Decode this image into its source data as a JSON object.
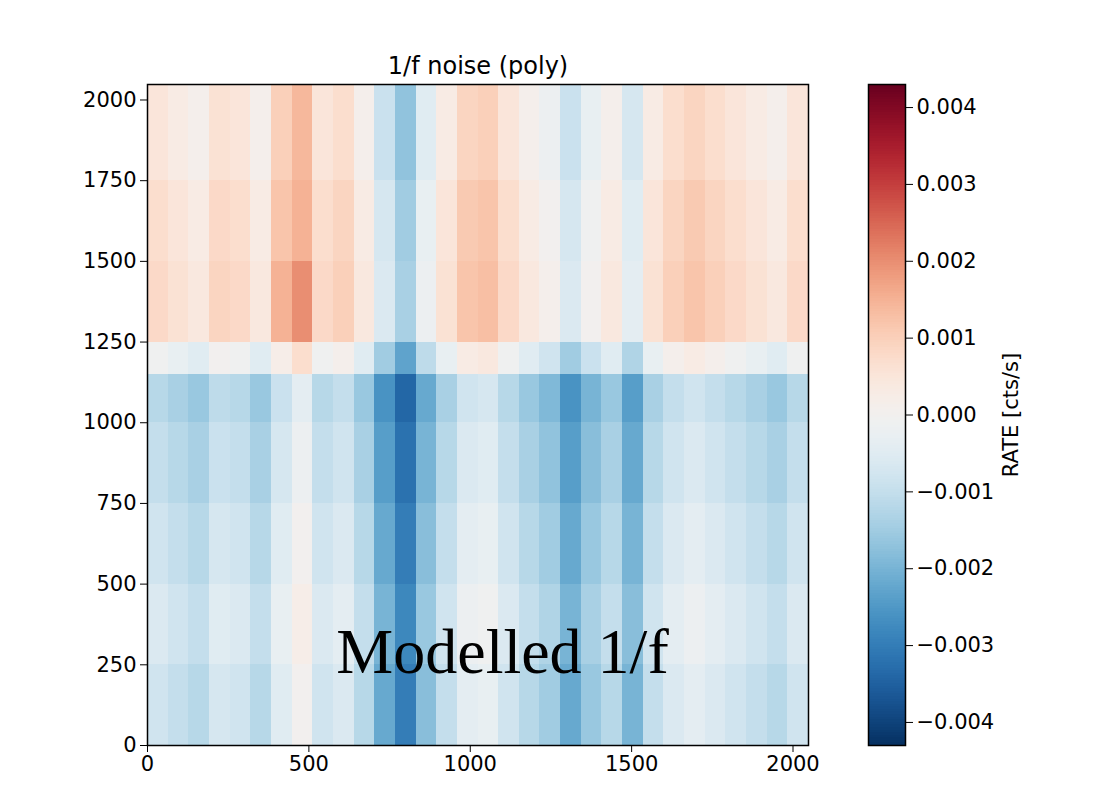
{
  "chart_data": {
    "type": "heatmap",
    "title": "1/f noise (poly)",
    "color": "RdBu_r",
    "xlim": [
      0,
      2048
    ],
    "ylim": [
      0,
      2048
    ],
    "xticks": [
      0,
      500,
      1000,
      1500,
      2000
    ],
    "yticks": [
      0,
      250,
      500,
      750,
      1000,
      1250,
      1500,
      1750,
      2000
    ],
    "x_edges": [
      0,
      64,
      128,
      192,
      256,
      320,
      384,
      448,
      512,
      576,
      640,
      704,
      768,
      832,
      896,
      960,
      1024,
      1088,
      1152,
      1216,
      1280,
      1344,
      1408,
      1472,
      1536,
      1600,
      1664,
      1728,
      1792,
      1856,
      1920,
      1984,
      2048
    ],
    "y_edges": [
      0,
      250,
      500,
      750,
      1000,
      1150,
      1250,
      1500,
      1750,
      2048
    ],
    "cells": [
      [
        -0.0008,
        -0.001,
        -0.0012,
        -0.0007,
        -0.0008,
        -0.0012,
        -0.0005,
        0.0,
        -0.0008,
        -0.0006,
        -0.0012,
        -0.0022,
        -0.003,
        -0.0018,
        -0.001,
        -0.0004,
        -0.0003,
        -0.0008,
        -0.0012,
        -0.0015,
        -0.0022,
        -0.0016,
        -0.0012,
        -0.002,
        -0.001,
        -0.0006,
        -0.0004,
        -0.0006,
        -0.0008,
        -0.001,
        -0.0012,
        -0.0008
      ],
      [
        -0.0006,
        -0.0008,
        -0.001,
        -0.0005,
        -0.0006,
        -0.001,
        -0.0003,
        0.0002,
        -0.0006,
        -0.0004,
        -0.001,
        -0.002,
        -0.0028,
        -0.0016,
        -0.0008,
        -0.0002,
        -0.0001,
        -0.0006,
        -0.001,
        -0.0013,
        -0.002,
        -0.0014,
        -0.001,
        -0.0018,
        -0.0008,
        -0.0004,
        -0.0002,
        -0.0004,
        -0.0006,
        -0.0008,
        -0.001,
        -0.0006
      ],
      [
        -0.0008,
        -0.001,
        -0.0012,
        -0.0007,
        -0.0008,
        -0.0012,
        -0.0005,
        0.0,
        -0.0008,
        -0.0006,
        -0.0012,
        -0.0022,
        -0.003,
        -0.0018,
        -0.001,
        -0.0004,
        -0.0003,
        -0.0008,
        -0.0012,
        -0.0015,
        -0.0022,
        -0.0016,
        -0.0012,
        -0.002,
        -0.001,
        -0.0006,
        -0.0004,
        -0.0006,
        -0.0008,
        -0.001,
        -0.0012,
        -0.0008
      ],
      [
        -0.001,
        -0.0012,
        -0.0014,
        -0.0009,
        -0.001,
        -0.0014,
        -0.0007,
        -0.0002,
        -0.001,
        -0.0008,
        -0.0014,
        -0.0024,
        -0.0032,
        -0.002,
        -0.0012,
        -0.0006,
        -0.0005,
        -0.001,
        -0.0014,
        -0.0017,
        -0.0024,
        -0.0018,
        -0.0014,
        -0.0022,
        -0.0012,
        -0.0008,
        -0.0006,
        -0.0008,
        -0.001,
        -0.0012,
        -0.0014,
        -0.001
      ],
      [
        -0.0012,
        -0.0014,
        -0.0016,
        -0.0011,
        -0.0012,
        -0.0016,
        -0.0009,
        -0.0004,
        -0.0012,
        -0.001,
        -0.0016,
        -0.0026,
        -0.0034,
        -0.0022,
        -0.0014,
        -0.0008,
        -0.0007,
        -0.0012,
        -0.0016,
        -0.0019,
        -0.0026,
        -0.002,
        -0.0016,
        -0.0024,
        -0.0014,
        -0.001,
        -0.0008,
        -0.001,
        -0.0012,
        -0.0014,
        -0.0016,
        -0.0012
      ],
      [
        -0.0001,
        -0.0003,
        -0.0005,
        0.0,
        -0.0001,
        -0.0005,
        0.0002,
        0.0007,
        -0.0001,
        0.0001,
        -0.0005,
        -0.0015,
        -0.0023,
        -0.0011,
        -0.0003,
        0.0003,
        0.0004,
        -0.0001,
        -0.0005,
        -0.0008,
        -0.0015,
        -0.0009,
        -0.0005,
        -0.0013,
        -0.0003,
        0.0001,
        0.0003,
        0.0001,
        -0.0001,
        -0.0003,
        -0.0005,
        -0.0001
      ],
      [
        0.0008,
        0.0006,
        0.0004,
        0.0009,
        0.0008,
        0.0004,
        0.0015,
        0.002,
        0.0008,
        0.001,
        0.0004,
        -0.0006,
        -0.0014,
        -0.0002,
        0.0006,
        0.0012,
        0.0013,
        0.0008,
        0.0004,
        0.0001,
        -0.0006,
        0.0,
        0.0004,
        -0.0004,
        0.0006,
        0.001,
        0.0012,
        0.001,
        0.0008,
        0.0006,
        0.0004,
        0.0008
      ],
      [
        0.0007,
        0.0005,
        0.0003,
        0.0008,
        0.0007,
        0.0003,
        0.0012,
        0.0015,
        0.0007,
        0.0009,
        0.0003,
        -0.0007,
        -0.0015,
        -0.0003,
        0.0005,
        0.0011,
        0.0012,
        0.0007,
        0.0003,
        0.0,
        -0.0007,
        -0.0001,
        0.0003,
        -0.0005,
        0.0005,
        0.0009,
        0.0011,
        0.0009,
        0.0007,
        0.0005,
        0.0003,
        0.0007
      ],
      [
        0.0005,
        0.0003,
        0.0001,
        0.0006,
        0.0005,
        0.0001,
        0.001,
        0.0014,
        0.0005,
        0.0007,
        0.0001,
        -0.0009,
        -0.0017,
        -0.0005,
        0.0003,
        0.0009,
        0.001,
        0.0005,
        0.0001,
        -0.0002,
        -0.0009,
        -0.0003,
        0.0001,
        -0.0007,
        0.0003,
        0.0007,
        0.0009,
        0.0007,
        0.0005,
        0.0003,
        0.0001,
        0.0005
      ]
    ],
    "colorbar": {
      "label": "RATE [cts/s]",
      "range": [
        -0.0043,
        0.0043
      ],
      "ticks": [
        {
          "value": -0.004,
          "label": "−0.004"
        },
        {
          "value": -0.003,
          "label": "−0.003"
        },
        {
          "value": -0.002,
          "label": "−0.002"
        },
        {
          "value": -0.001,
          "label": "−0.001"
        },
        {
          "value": 0,
          "label": "0.000"
        },
        0.001,
        0.002,
        0.003,
        0.004
      ]
    },
    "annotations": [
      {
        "text": "Modelled 1/f",
        "x": 1100,
        "y": 288
      }
    ]
  }
}
